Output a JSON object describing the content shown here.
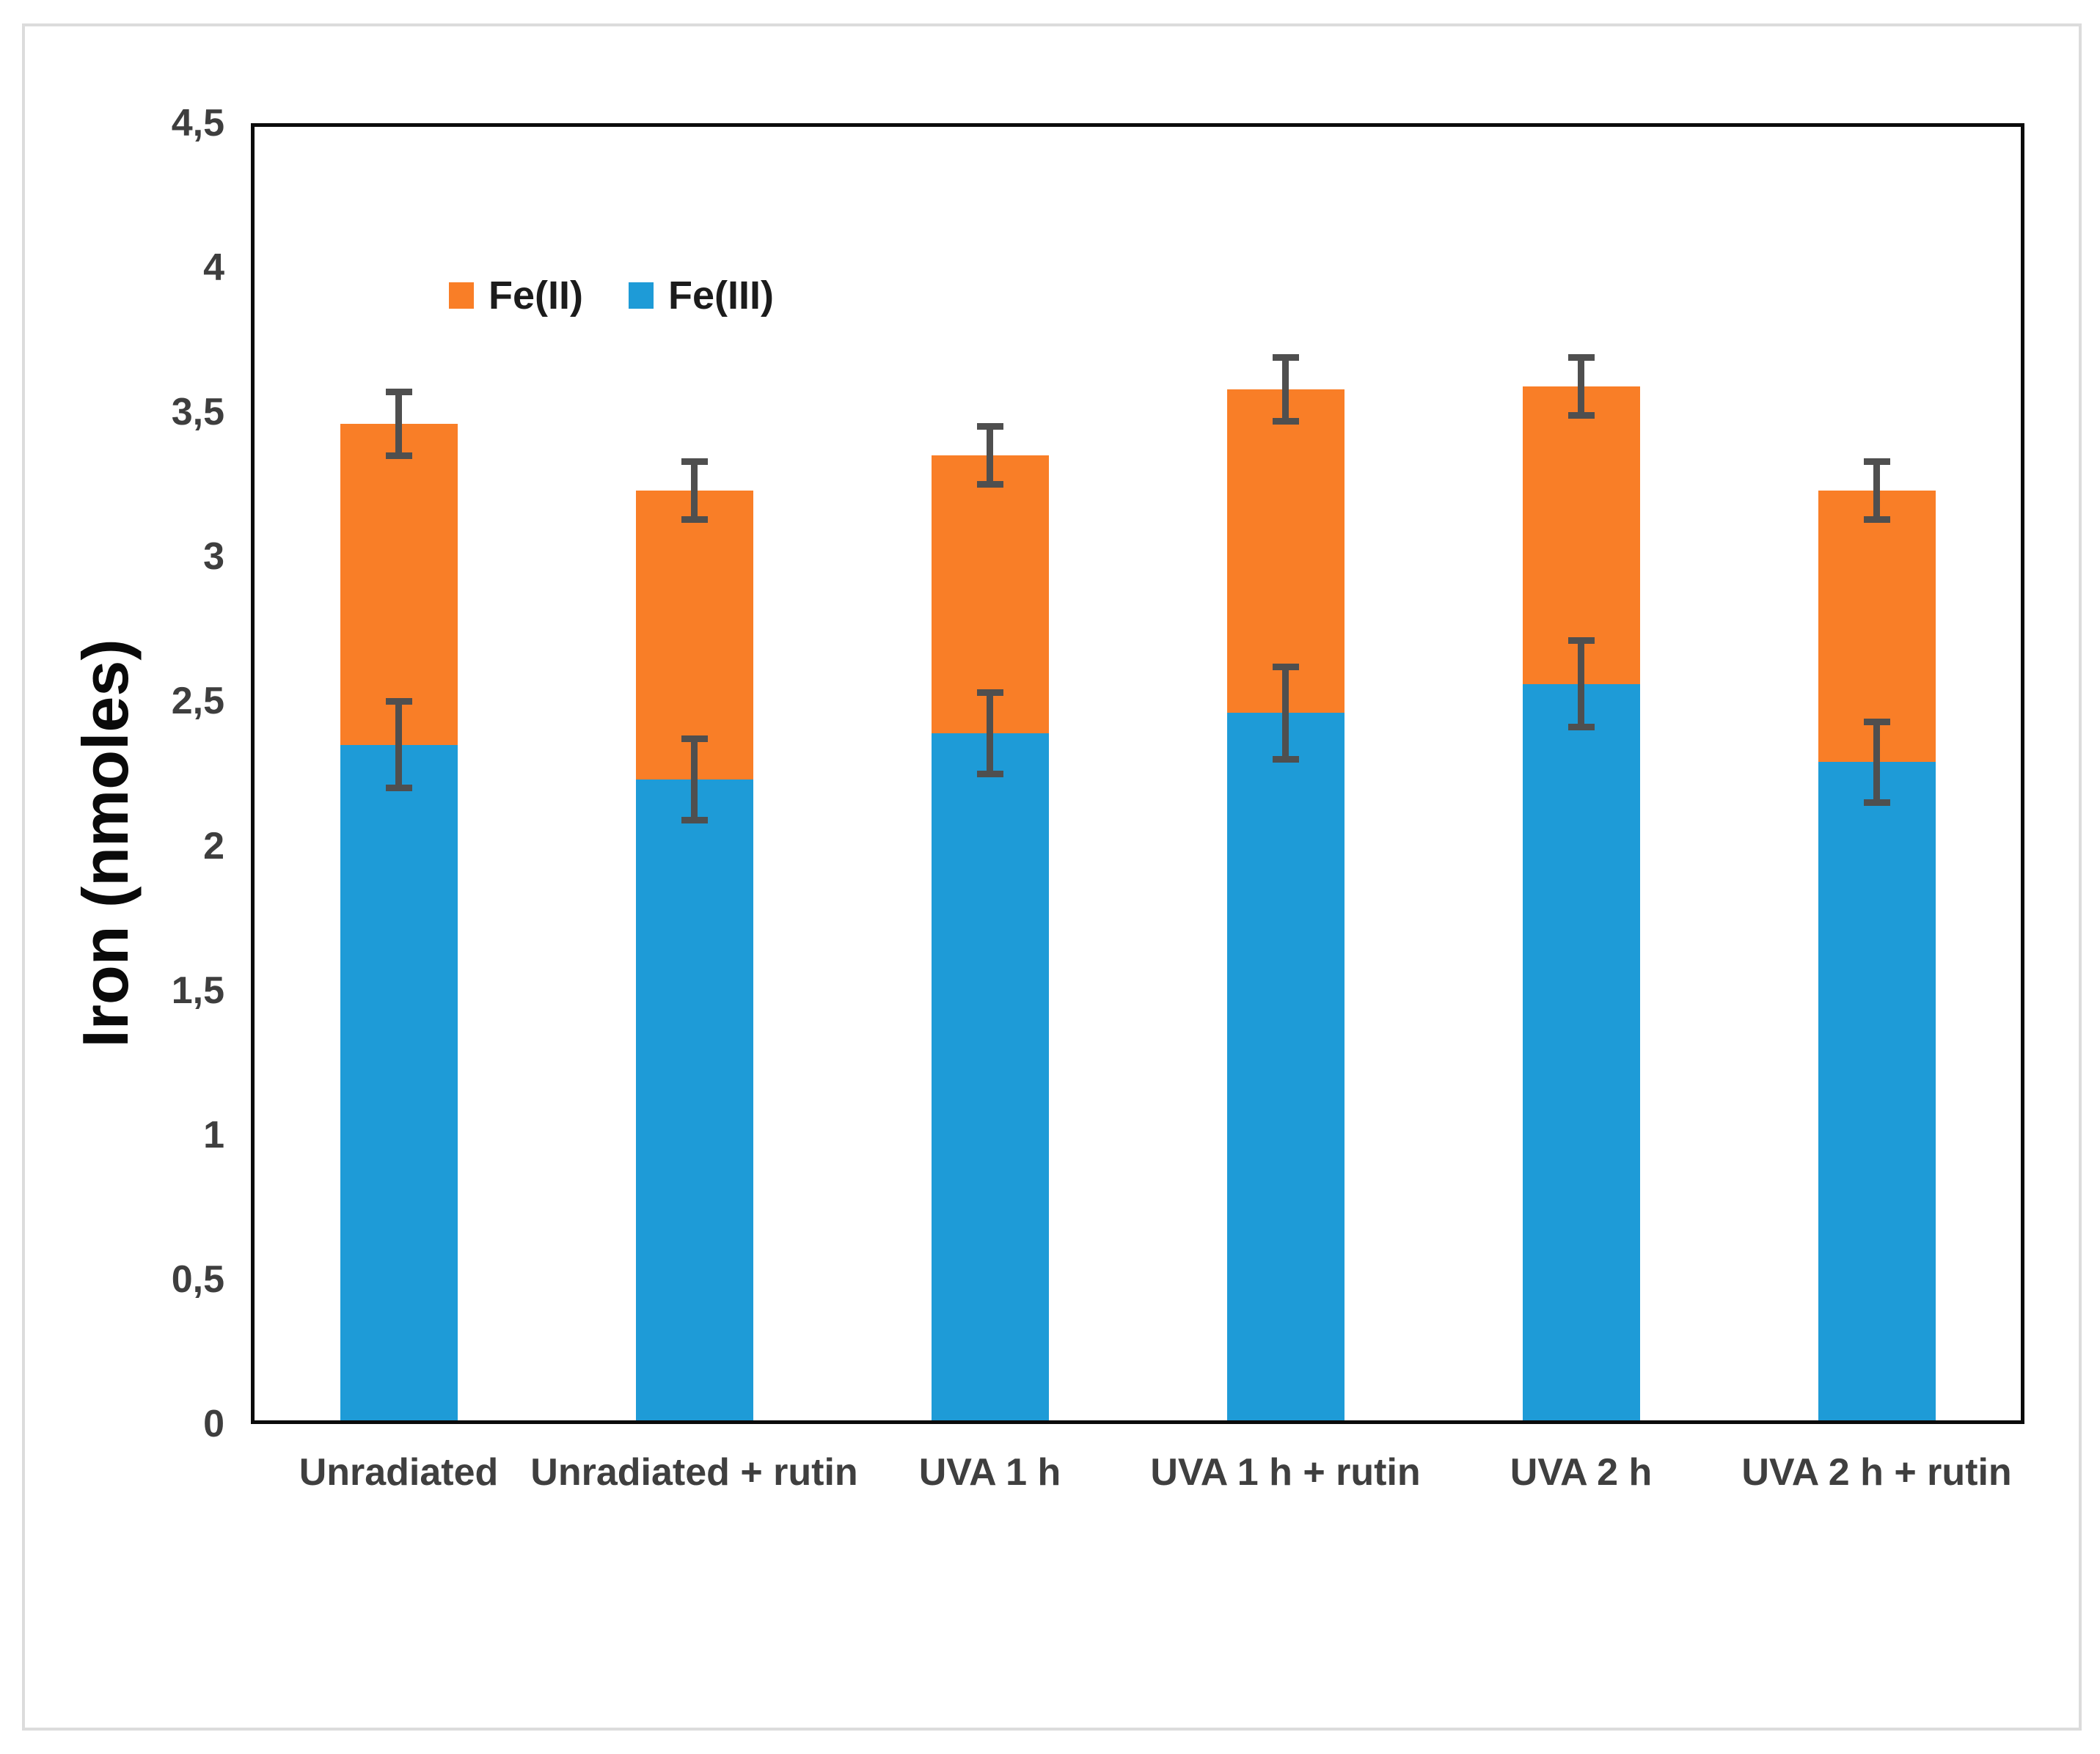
{
  "chart_data": {
    "type": "bar",
    "stacked": true,
    "title": "",
    "ylabel": "Iron (nmoles)",
    "xlabel": "",
    "ylim": [
      0,
      4.5
    ],
    "ytick_step": 0.5,
    "decimal_separator": ",",
    "grid": "off",
    "legend_position": "inside-top-left",
    "categories": [
      "Unradiated",
      "Unradiated + rutin",
      "UVA 1 h",
      "UVA 1 h + rutin",
      "UVA 2 h",
      "UVA 2 h + rutin"
    ],
    "series": [
      {
        "name": "Fe(III)",
        "stack_position": "bottom",
        "color": "#1E9BD7",
        "values": [
          2.35,
          2.23,
          2.39,
          2.46,
          2.56,
          2.29
        ],
        "error_bars": [
          0.15,
          0.14,
          0.14,
          0.16,
          0.15,
          0.14
        ]
      },
      {
        "name": "Fe(II)",
        "stack_position": "top",
        "color": "#F97E27",
        "values": [
          1.11,
          1.0,
          0.96,
          1.12,
          1.03,
          0.94
        ]
      }
    ],
    "stack_totals": {
      "values": [
        3.46,
        3.23,
        3.35,
        3.58,
        3.59,
        3.23
      ],
      "error_bars": [
        0.11,
        0.1,
        0.1,
        0.11,
        0.1,
        0.1
      ]
    },
    "error_bar_color": "#4F4F4F",
    "y_ticks": [
      {
        "v": 0,
        "label": "0"
      },
      {
        "v": 0.5,
        "label": "0,5"
      },
      {
        "v": 1,
        "label": "1"
      },
      {
        "v": 1.5,
        "label": "1,5"
      },
      {
        "v": 2,
        "label": "2"
      },
      {
        "v": 2.5,
        "label": "2,5"
      },
      {
        "v": 3,
        "label": "3"
      },
      {
        "v": 3.5,
        "label": "3,5"
      },
      {
        "v": 4,
        "label": "4"
      },
      {
        "v": 4.5,
        "label": "4,5"
      }
    ],
    "legend": {
      "items": [
        {
          "label": "Fe(II)",
          "color": "#F97E27"
        },
        {
          "label": "Fe(III)",
          "color": "#1E9BD7"
        }
      ]
    }
  }
}
